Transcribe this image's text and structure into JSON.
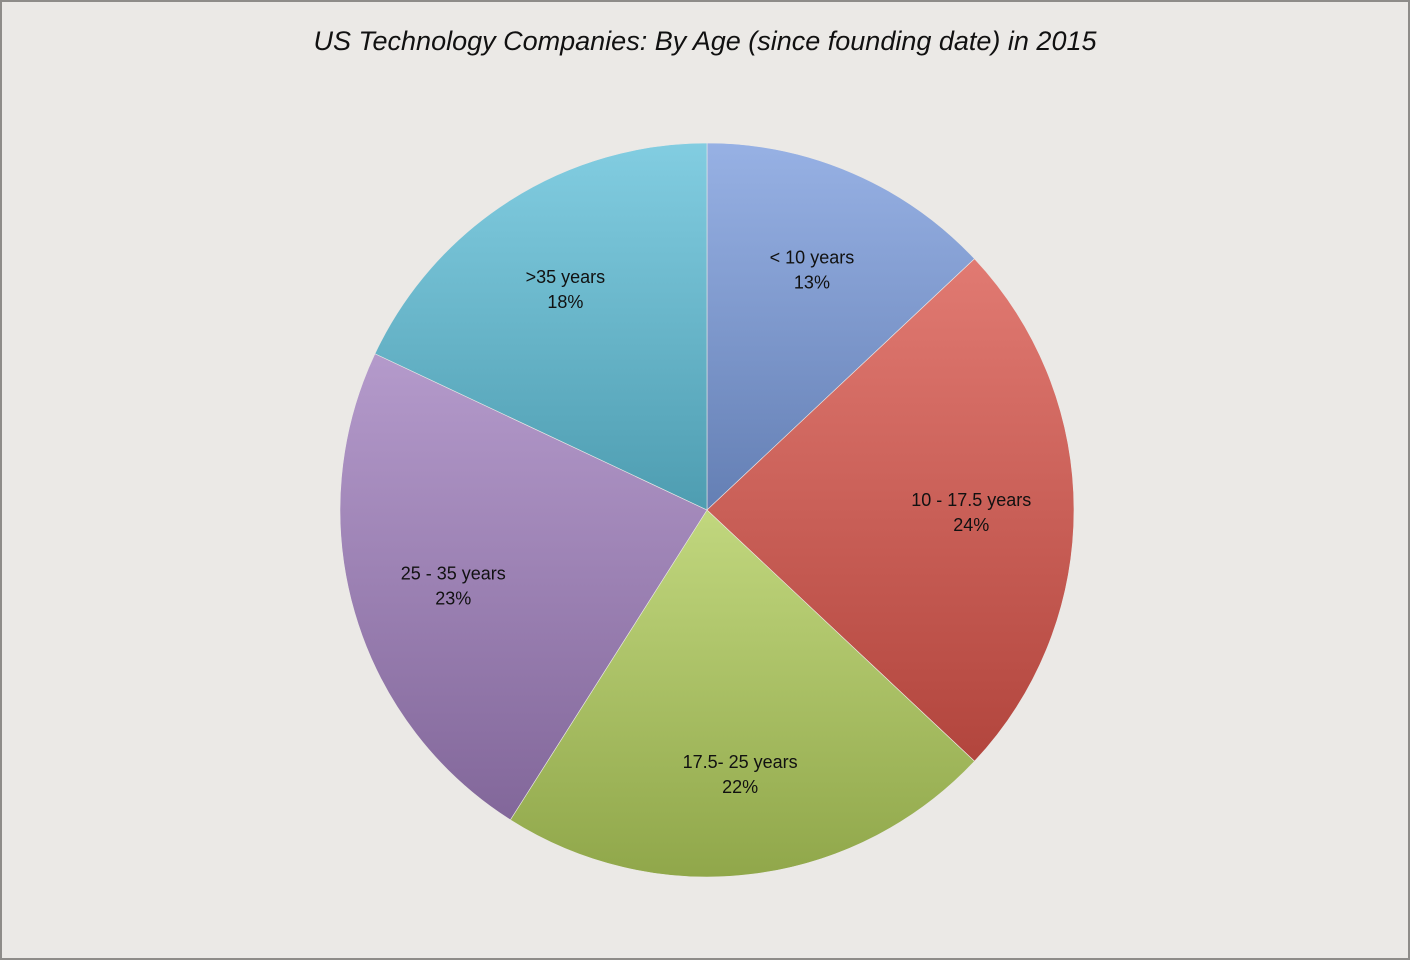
{
  "chart_data": {
    "type": "pie",
    "title": "US Technology Companies: By Age (since founding date) in 2015",
    "slices": [
      {
        "label": "< 10 years",
        "value": 13,
        "value_label": "13%",
        "color": "#7a9bdc"
      },
      {
        "label": "10 - 17.5 years",
        "value": 24,
        "value_label": "24%",
        "color": "#d9544a"
      },
      {
        "label": "17.5- 25 years",
        "value": 22,
        "value_label": "22%",
        "color": "#b0cc5a"
      },
      {
        "label": "25 - 35 years",
        "value": 23,
        "value_label": "23%",
        "color": "#9f7dbc"
      },
      {
        "label": ">35 years",
        "value": 18,
        "value_label": "18%",
        "color": "#5fbfd8"
      }
    ],
    "start_angle": "12 o'clock",
    "direction": "clockwise",
    "legend": "none",
    "labels_inside_slices": true
  }
}
